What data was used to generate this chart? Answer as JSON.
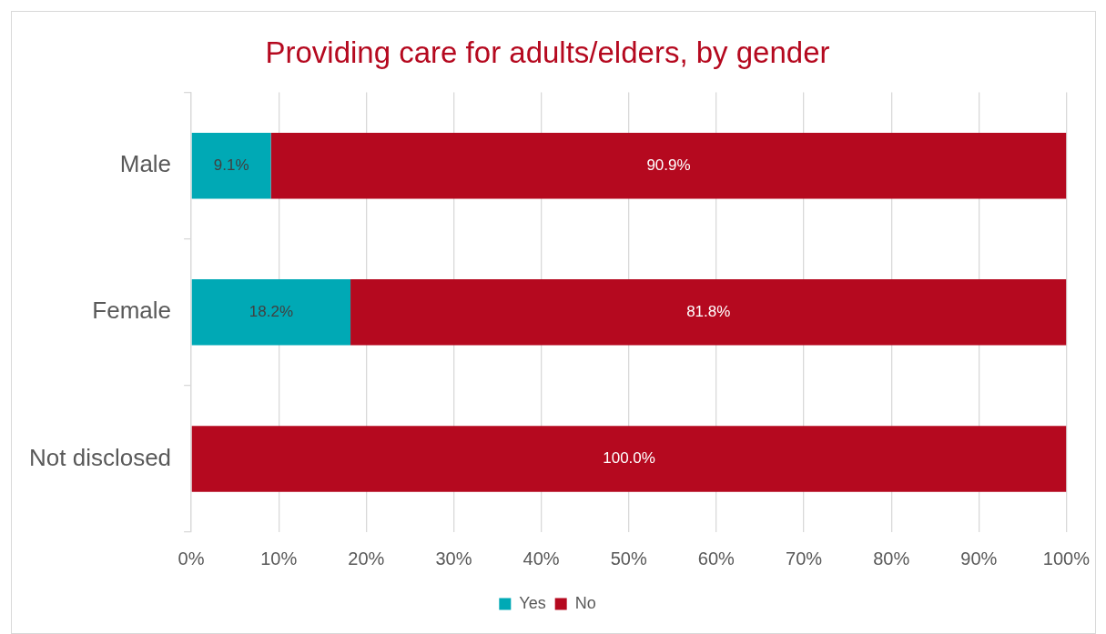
{
  "chart_data": {
    "type": "bar",
    "orientation": "horizontal",
    "stacked": true,
    "title": "Providing care for adults/elders, by gender",
    "categories": [
      "Male",
      "Female",
      "Not disclosed"
    ],
    "series": [
      {
        "name": "Yes",
        "color": "#00a9b5",
        "values": [
          9.1,
          18.2,
          0
        ],
        "value_labels": [
          "9.1%",
          "18.2%",
          null
        ]
      },
      {
        "name": "No",
        "color": "#b5091f",
        "values": [
          90.9,
          81.8,
          100
        ],
        "value_labels": [
          "90.9%",
          "81.8%",
          "100.0%"
        ]
      }
    ],
    "xlim": [
      0,
      100
    ],
    "xticks": [
      {
        "value": 0,
        "label": "0%"
      },
      {
        "value": 10,
        "label": "10%"
      },
      {
        "value": 20,
        "label": "20%"
      },
      {
        "value": 30,
        "label": "30%"
      },
      {
        "value": 40,
        "label": "40%"
      },
      {
        "value": 50,
        "label": "50%"
      },
      {
        "value": 60,
        "label": "60%"
      },
      {
        "value": 70,
        "label": "70%"
      },
      {
        "value": 80,
        "label": "80%"
      },
      {
        "value": 90,
        "label": "90%"
      },
      {
        "value": 100,
        "label": "100%"
      }
    ],
    "grid": "x",
    "legend": "bottom"
  }
}
